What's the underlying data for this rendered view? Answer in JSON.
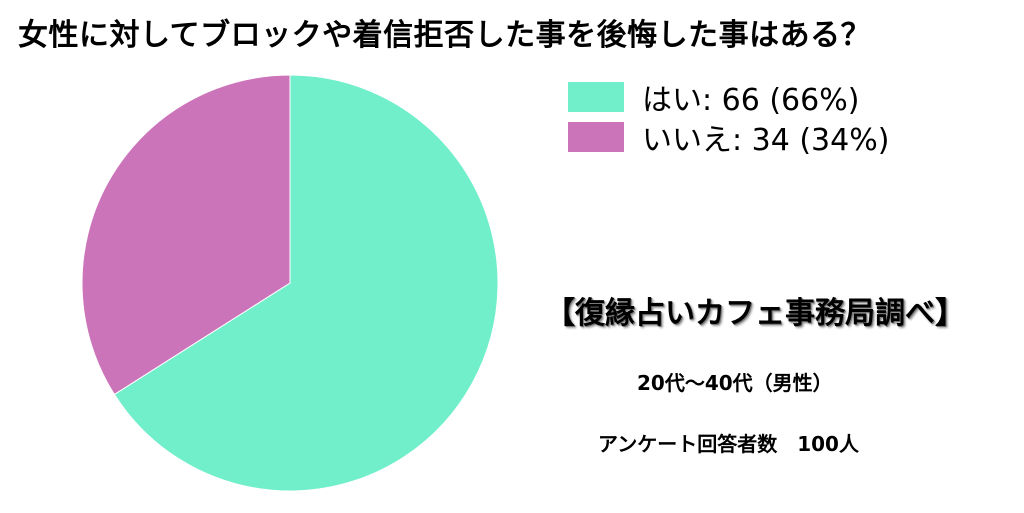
{
  "chart_data": {
    "type": "pie",
    "title": "女性に対してブロックや着信拒否した事を後悔した事はある？",
    "slices": [
      {
        "label": "はい",
        "value": 66,
        "percent": 66,
        "color": "#70efca"
      },
      {
        "label": "いいえ",
        "value": 34,
        "percent": 34,
        "color": "#cc74b9"
      }
    ],
    "legend_labels": [
      "はい: 66 (66%)",
      "いいえ: 34 (34%)"
    ],
    "legend_position": "top-right"
  },
  "source": "【復縁占いカフェ事務局調べ】",
  "demographic": "20代〜40代（男性）",
  "respondents": "アンケート回答者数　100人"
}
